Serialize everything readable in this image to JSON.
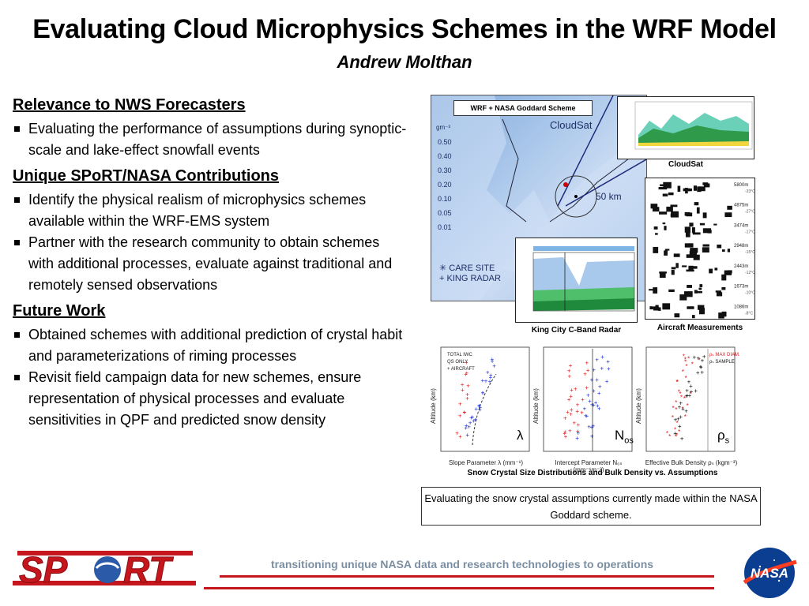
{
  "title": "Evaluating Cloud Microphysics Schemes in the WRF Model",
  "author": "Andrew Molthan",
  "sections": [
    {
      "heading": "Relevance to NWS Forecasters",
      "bullets": [
        "Evaluating the performance of assumptions during synoptic-scale and lake-effect snowfall events"
      ]
    },
    {
      "heading": "Unique SPoRT/NASA Contributions",
      "bullets": [
        "Identify the physical realism of microphysics schemes available within the WRF-EMS system",
        "Partner with the research community to obtain schemes with additional processes, evaluate against traditional and remotely sensed observations"
      ]
    },
    {
      "heading": "Future Work",
      "bullets": [
        "Obtained schemes with additional prediction of crystal habit and parameterizations of riming processes",
        "Revisit field campaign data for new schemes, ensure representation of physical processes and evaluate sensitivities in QPF and predicted snow density"
      ]
    }
  ],
  "figure": {
    "map_label": "WRF + NASA Goddard Scheme",
    "map_cloudsat": "CloudSat",
    "map_scale": "50 km",
    "map_care": "CARE SITE",
    "map_king": "KING RADAR",
    "map_units": "gm⁻³",
    "map_legend": [
      "0.50",
      "0.40",
      "0.30",
      "0.20",
      "0.10",
      "0.05",
      "0.01"
    ],
    "caption_cloudsat": "CloudSat",
    "caption_aircraft": "Aircraft Measurements",
    "caption_radar": "King City C-Band Radar",
    "aircraft_altitudes": [
      "5800m",
      "4875m",
      "3474m",
      "2948m",
      "2443m",
      "1673m",
      "1086m"
    ],
    "aircraft_temps": [
      "-33°C",
      "-27°C",
      "-17°C",
      "-15°C",
      "-12°C",
      "-10°C",
      "-8°C"
    ],
    "plots_caption": "Snow Crystal Size Distributions and Bulk Density vs. Assumptions",
    "plot1_legend": [
      "TOTAL IWC",
      "QS ONLY",
      "+ AIRCRAFT"
    ],
    "plot1_xlabel": "Slope Parameter λ (mm⁻¹)",
    "plot2_xlabel": "Intercept Parameter N₀ₛ (mm⁻¹m⁻³)",
    "plot3_xlabel": "Effective Bulk Density ρₛ (kgm⁻³)",
    "plot3_legend": [
      "ρₛ MAX DIAM.",
      "ρₛ SAMPLE"
    ],
    "ylabel": "Altitude (km)",
    "greek": [
      "λ",
      "N",
      "os",
      "ρ",
      "s"
    ],
    "bottom_text": "Evaluating the snow crystal assumptions currently made within the NASA Goddard scheme."
  },
  "footer": {
    "text": "transitioning unique NASA data and research technologies to operations",
    "sport_logo": "SPoRT",
    "nasa_logo": "NASA"
  },
  "colors": {
    "red": "#c4161c",
    "footer_gray": "#7b8fa3",
    "map_blue": "#7fa8d8"
  }
}
